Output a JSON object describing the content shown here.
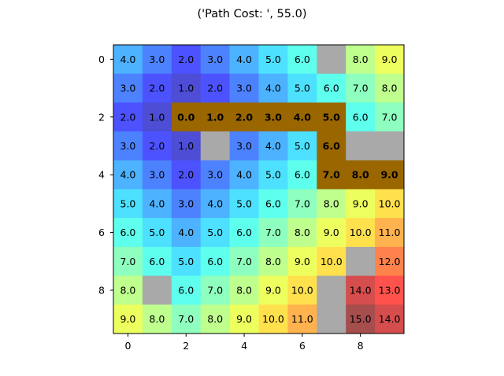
{
  "chart_data": {
    "type": "heatmap",
    "title": "('Path Cost: ', 55.0)",
    "xlabel": "",
    "ylabel": "",
    "x_ticks": [
      0,
      2,
      4,
      6,
      8
    ],
    "y_ticks": [
      0,
      2,
      4,
      6,
      8
    ],
    "xlim": [
      -0.5,
      9.5
    ],
    "ylim": [
      9.5,
      -0.5
    ],
    "grid": false,
    "legend": "none",
    "rows": 10,
    "cols": 10,
    "values": [
      [
        4,
        3,
        2,
        3,
        4,
        5,
        6,
        null,
        8,
        9
      ],
      [
        3,
        2,
        1,
        2,
        3,
        4,
        5,
        6,
        7,
        8
      ],
      [
        2,
        1,
        0,
        1,
        2,
        3,
        4,
        5,
        6,
        7
      ],
      [
        3,
        2,
        1,
        null,
        3,
        4,
        5,
        6,
        null,
        null
      ],
      [
        4,
        3,
        2,
        3,
        4,
        5,
        6,
        7,
        8,
        9
      ],
      [
        5,
        4,
        3,
        4,
        5,
        6,
        7,
        8,
        9,
        10
      ],
      [
        6,
        5,
        4,
        5,
        6,
        7,
        8,
        9,
        10,
        11
      ],
      [
        7,
        6,
        5,
        6,
        7,
        8,
        9,
        10,
        null,
        12
      ],
      [
        8,
        null,
        6,
        7,
        8,
        9,
        10,
        null,
        14,
        13
      ],
      [
        9,
        8,
        7,
        8,
        9,
        10,
        11,
        null,
        15,
        14
      ]
    ],
    "path": [
      [
        2,
        2
      ],
      [
        2,
        3
      ],
      [
        2,
        4
      ],
      [
        2,
        5
      ],
      [
        2,
        6
      ],
      [
        2,
        7
      ],
      [
        3,
        7
      ],
      [
        4,
        7
      ],
      [
        4,
        8
      ],
      [
        4,
        9
      ]
    ],
    "colormap": "jet",
    "value_range": [
      0,
      15
    ],
    "colors": {
      "obstacle": "#a9a9a9",
      "path_cell": "#996600",
      "background": "#ffffff"
    },
    "value_format": "one-decimal"
  }
}
